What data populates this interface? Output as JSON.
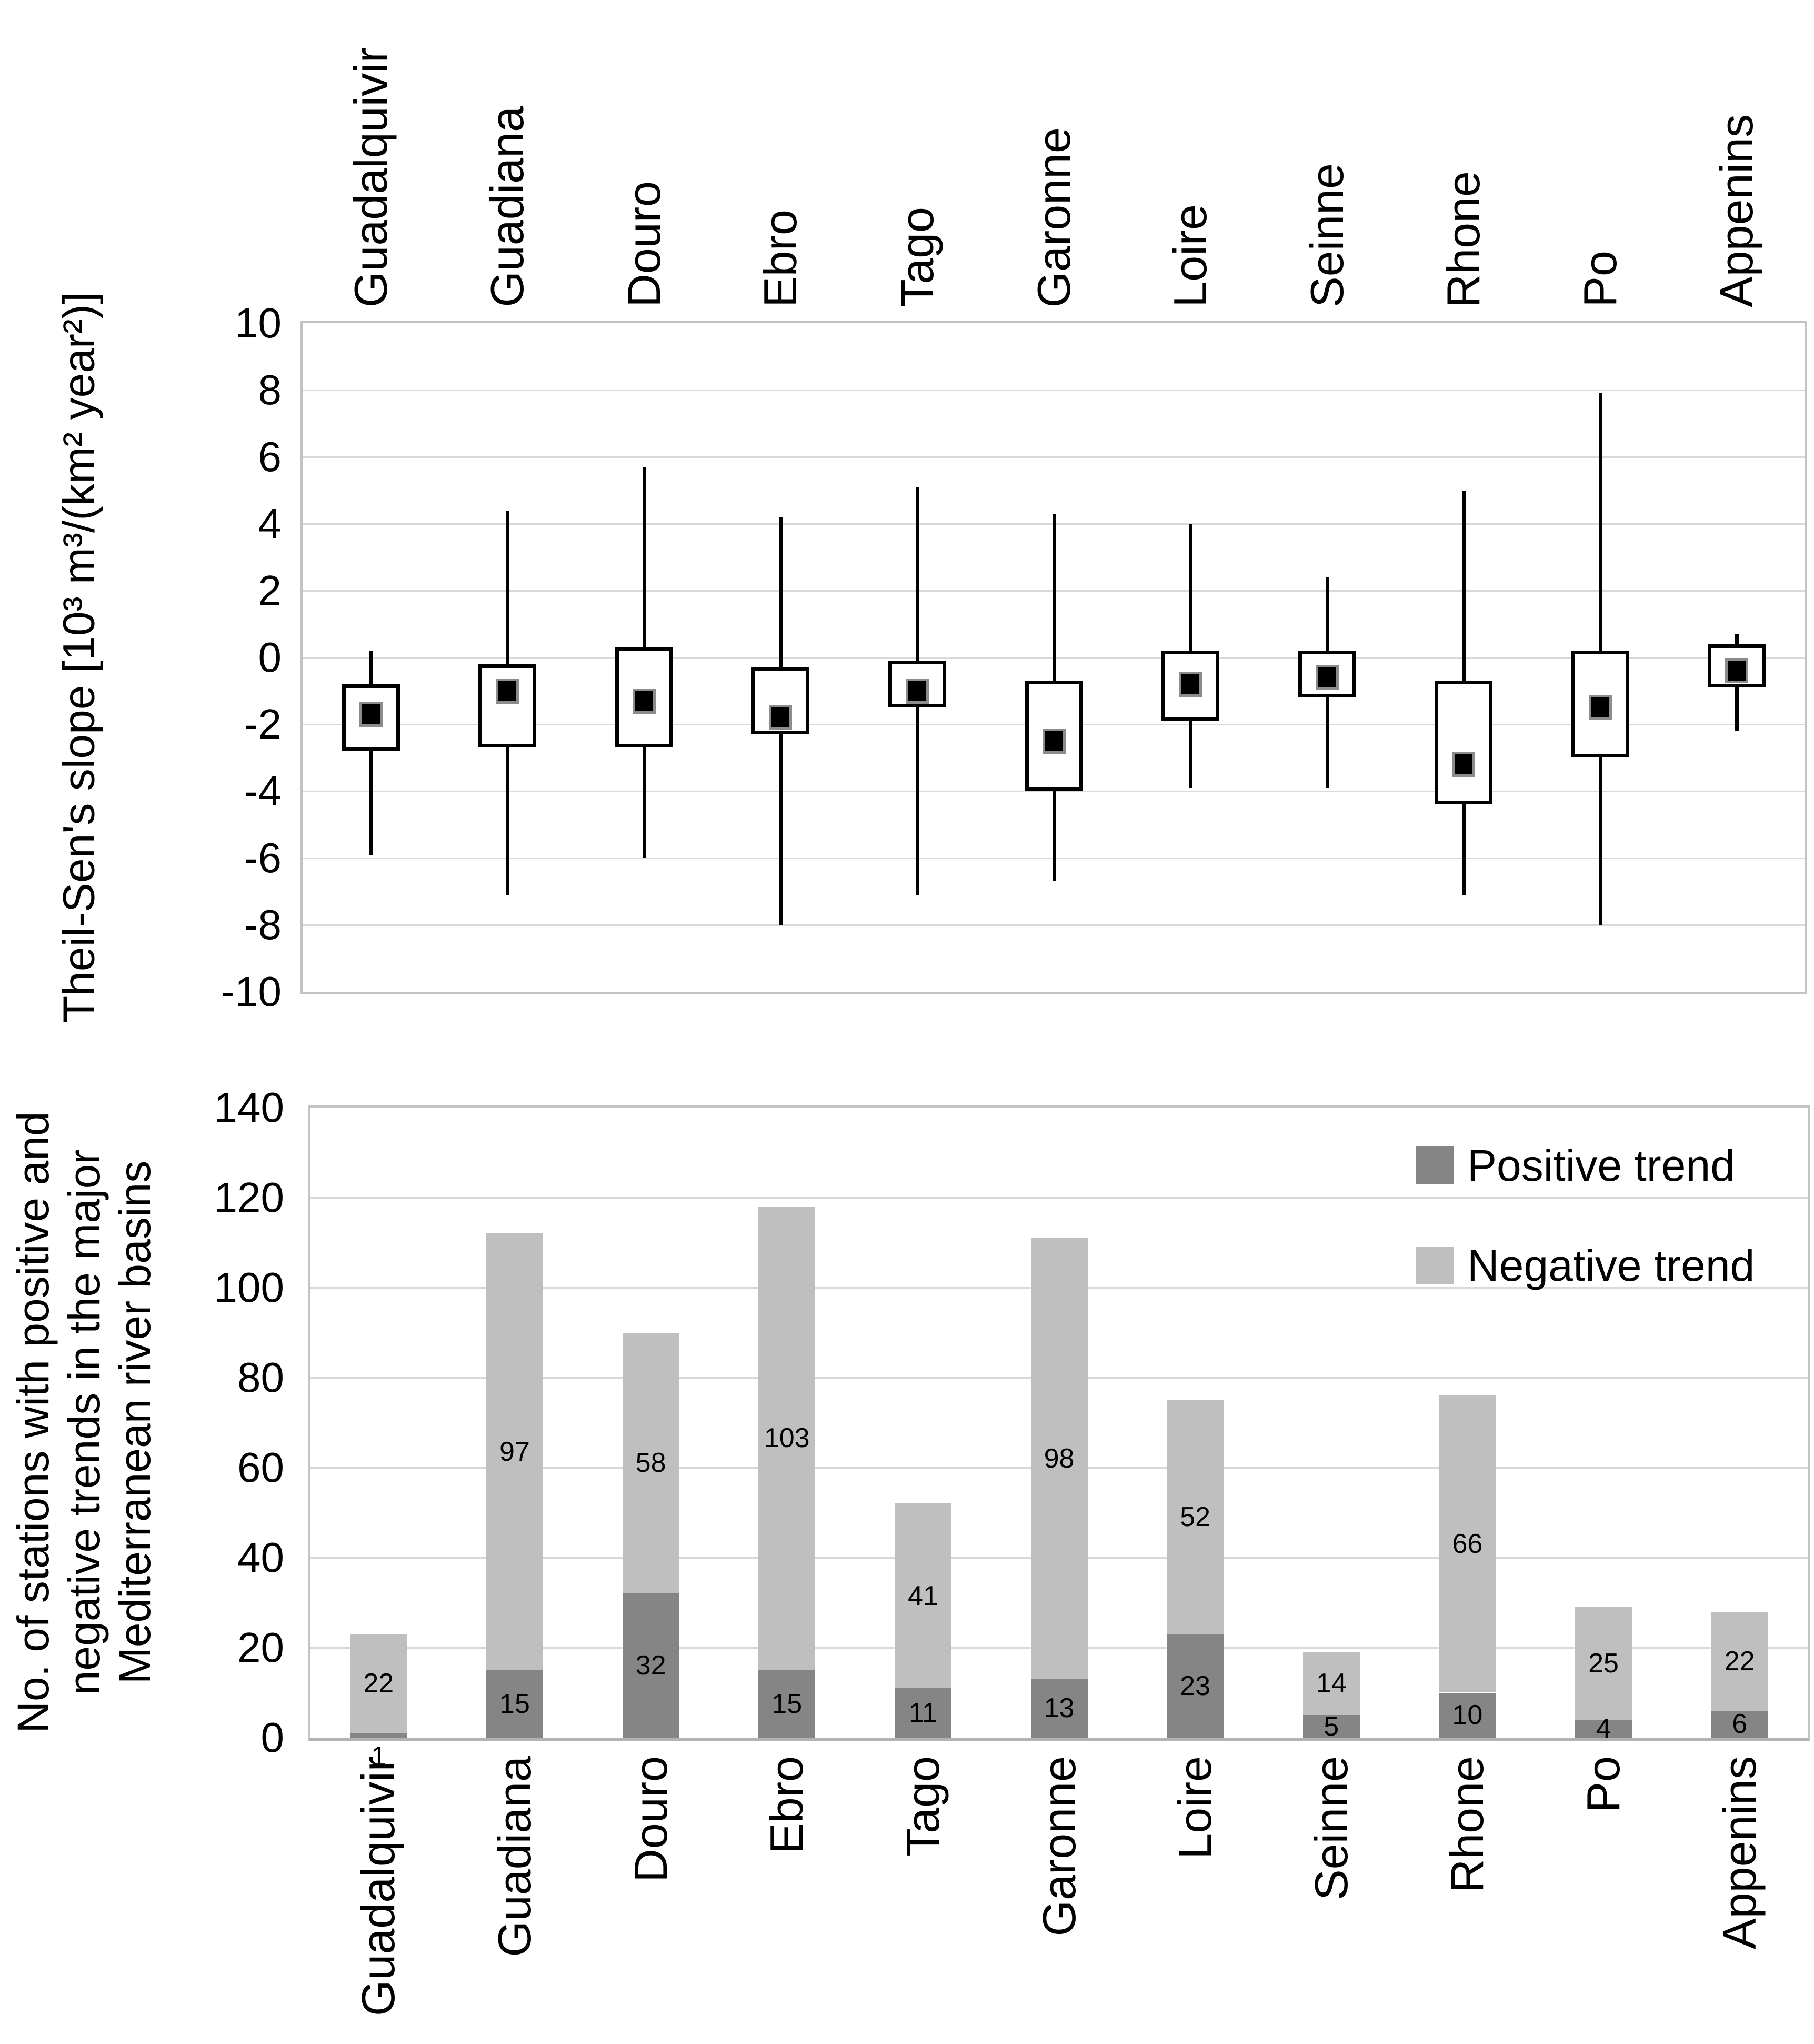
{
  "colors": {
    "grid": "#d9d9d9",
    "plot_border": "#c3c3c3",
    "box_line": "#000000",
    "marker_fill": "#000000",
    "marker_border": "#8c8c8c",
    "positive": "#858585",
    "negative": "#bfbfbf",
    "text": "#000000"
  },
  "chart_data": [
    {
      "type": "boxplot",
      "title": "",
      "ylabel": "Theil-Sen's slope [10³ m³/(km² year²)]",
      "categories": [
        "Guadalquivir",
        "Guadiana",
        "Douro",
        "Ebro",
        "Tago",
        "Garonne",
        "Loire",
        "Seinne",
        "Rhone",
        "Po",
        "Appenins"
      ],
      "ylim": [
        -10,
        10
      ],
      "ytick_step": 2,
      "ytick_labels": [
        "10",
        "8",
        "6",
        "4",
        "2",
        "0",
        "-2",
        "-4",
        "-6",
        "-8",
        "-10"
      ],
      "grid": true,
      "legend_position": "none",
      "boxes": [
        {
          "category": "Guadalquivir",
          "whisker_high": 0.2,
          "q3": -0.8,
          "mean": -1.7,
          "q1": -2.8,
          "whisker_low": -5.9
        },
        {
          "category": "Guadiana",
          "whisker_high": 4.4,
          "q3": -0.2,
          "mean": -1.0,
          "q1": -2.7,
          "whisker_low": -7.1
        },
        {
          "category": "Douro",
          "whisker_high": 5.7,
          "q3": 0.3,
          "mean": -1.3,
          "q1": -2.7,
          "whisker_low": -6.0
        },
        {
          "category": "Ebro",
          "whisker_high": 4.2,
          "q3": -0.3,
          "mean": -1.8,
          "q1": -2.3,
          "whisker_low": -8.0
        },
        {
          "category": "Tago",
          "whisker_high": 5.1,
          "q3": -0.1,
          "mean": -1.0,
          "q1": -1.5,
          "whisker_low": -7.1
        },
        {
          "category": "Garonne",
          "whisker_high": 4.3,
          "q3": -0.7,
          "mean": -2.5,
          "q1": -4.0,
          "whisker_low": -6.7
        },
        {
          "category": "Loire",
          "whisker_high": 4.0,
          "q3": 0.2,
          "mean": -0.8,
          "q1": -1.9,
          "whisker_low": -3.9
        },
        {
          "category": "Seinne",
          "whisker_high": 2.4,
          "q3": 0.2,
          "mean": -0.6,
          "q1": -1.2,
          "whisker_low": -3.9
        },
        {
          "category": "Rhone",
          "whisker_high": 5.0,
          "q3": -0.7,
          "mean": -3.2,
          "q1": -4.4,
          "whisker_low": -7.1
        },
        {
          "category": "Po",
          "whisker_high": 7.9,
          "q3": 0.2,
          "mean": -1.5,
          "q1": -3.0,
          "whisker_low": -8.0
        },
        {
          "category": "Appenins",
          "whisker_high": 0.7,
          "q3": 0.4,
          "mean": -0.4,
          "q1": -0.9,
          "whisker_low": -2.2
        }
      ]
    },
    {
      "type": "bar",
      "stacked": true,
      "title": "",
      "ylabel": "No. of stations with positive and\nnegative trends in the major\nMediterranean river basins",
      "categories": [
        "Guadalquivir",
        "Guadiana",
        "Douro",
        "Ebro",
        "Tago",
        "Garonne",
        "Loire",
        "Seinne",
        "Rhone",
        "Po",
        "Appenins"
      ],
      "ylim": [
        0,
        140
      ],
      "ytick_step": 20,
      "ytick_labels": [
        "140",
        "120",
        "100",
        "80",
        "60",
        "40",
        "20",
        "0"
      ],
      "grid": true,
      "legend_position": "top-right",
      "data_labels": true,
      "series": [
        {
          "name": "Positive trend",
          "color": "#858585",
          "values": [
            1,
            15,
            32,
            15,
            11,
            13,
            23,
            5,
            10,
            4,
            6
          ]
        },
        {
          "name": "Negative trend",
          "color": "#bfbfbf",
          "values": [
            22,
            97,
            58,
            103,
            41,
            98,
            52,
            14,
            66,
            25,
            22
          ]
        }
      ]
    }
  ]
}
